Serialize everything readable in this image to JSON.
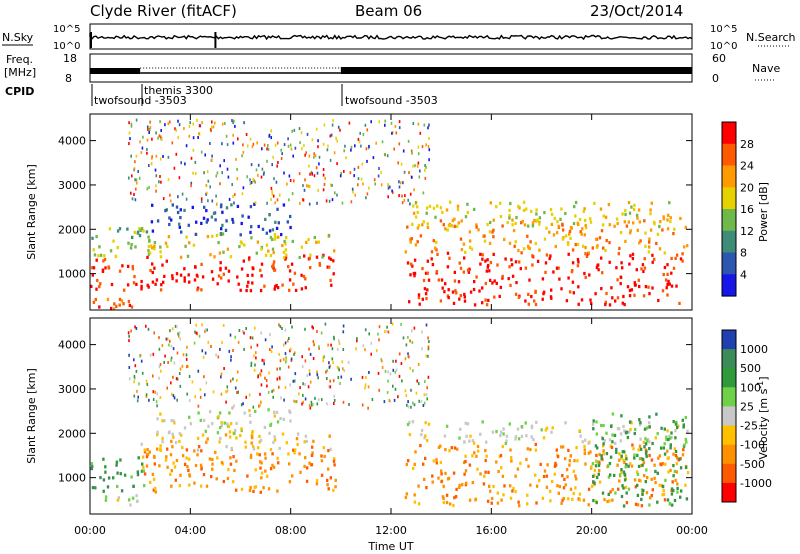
{
  "header": {
    "station": "Clyde River (fitACF)",
    "beam": "Beam 06",
    "date": "23/Oct/2014"
  },
  "nsky_panel": {
    "left_label": "N.Sky",
    "right_label": "N.Search",
    "left_ticks": [
      "10^5",
      "10^0"
    ],
    "right_ticks": [
      "10^5",
      "10^0"
    ]
  },
  "freq_panel": {
    "left_label_1": "Freq.",
    "left_label_2": "[MHz]",
    "right_label": "Nave",
    "left_ticks": [
      "18",
      "8"
    ],
    "right_ticks": [
      "60",
      "0"
    ]
  },
  "cpid": {
    "label": "CPID",
    "segments": [
      {
        "name": "twofsound -3503",
        "start_hour": 0,
        "end_hour": 2
      },
      {
        "name": "themis 3300",
        "start_hour": 2,
        "end_hour": 10
      },
      {
        "name": "twofsound -3503",
        "start_hour": 10,
        "end_hour": 24
      }
    ],
    "mid_label": "themis 3300",
    "first_label": "twofsound -3503",
    "last_label": "twofsound -3503"
  },
  "power_panel": {
    "ylabel": "Slant Range [km]",
    "cbar_label": "Power [dB]",
    "cbar_ticks": [
      "28",
      "24",
      "20",
      "16",
      "12",
      "8",
      "4"
    ],
    "cbar_colors": [
      "#ff0000",
      "#ff5a00",
      "#ff9a00",
      "#e6d200",
      "#6fb84a",
      "#3c8c78",
      "#2c56b0",
      "#1616e8"
    ]
  },
  "velocity_panel": {
    "ylabel": "Slant Range [km]",
    "cbar_label": "Velocity [m s",
    "cbar_label_sup": "-1",
    "cbar_label_end": "]",
    "cbar_ticks": [
      "1000",
      "500",
      "100",
      "25",
      "-25",
      "-100",
      "-500",
      "-1000"
    ],
    "cbar_colors": [
      "#2040b0",
      "#3c8c5a",
      "#2f9a3a",
      "#6fd04a",
      "#c8c8c8",
      "#ffc000",
      "#ff9000",
      "#ff5a00",
      "#ff0000"
    ]
  },
  "xaxis": {
    "label": "Time UT",
    "ticks": [
      "00:00",
      "04:00",
      "08:00",
      "12:00",
      "16:00",
      "20:00",
      "00:00"
    ]
  },
  "chart_data": [
    {
      "type": "line",
      "title": "",
      "x": [
        0,
        24
      ],
      "xlim": [
        0,
        24
      ],
      "series": [],
      "yscale": "log"
    },
    {
      "type": "heatmap",
      "title": "",
      "xlabel": "Time UT",
      "ylabel": "Slant Range [km]",
      "xlim": [
        0,
        24
      ],
      "ylim": [
        180,
        4600
      ],
      "yticks": [
        1000,
        2000,
        3000,
        4000
      ],
      "colorbar": "Power [dB]",
      "scatter_bands": [
        {
          "t0": 0.0,
          "t1": 2.1,
          "r0": 650,
          "r1": 1400,
          "level": 0
        },
        {
          "t0": 0.0,
          "t1": 2.3,
          "r0": 1400,
          "r1": 2150,
          "level": 4
        },
        {
          "t0": 0.0,
          "t1": 2.0,
          "r0": 200,
          "r1": 600,
          "level": 1
        },
        {
          "t0": 2.0,
          "t1": 9.8,
          "r0": 650,
          "r1": 1450,
          "level": 0
        },
        {
          "t0": 2.0,
          "t1": 9.8,
          "r0": 1400,
          "r1": 1950,
          "level": 3
        },
        {
          "t0": 2.4,
          "t1": 8.0,
          "r0": 1900,
          "r1": 2600,
          "level": 6
        },
        {
          "t0": 12.5,
          "t1": 23.8,
          "r0": 330,
          "r1": 1500,
          "level": 0
        },
        {
          "t0": 12.5,
          "t1": 23.8,
          "r0": 1500,
          "r1": 2250,
          "level": 2
        },
        {
          "t0": 12.8,
          "t1": 23.5,
          "r0": 2100,
          "r1": 2650,
          "level": 3
        }
      ]
    },
    {
      "type": "heatmap",
      "title": "",
      "xlabel": "Time UT",
      "ylabel": "Slant Range [km]",
      "xlim": [
        0,
        24
      ],
      "ylim": [
        180,
        4600
      ],
      "yticks": [
        1000,
        2000,
        3000,
        4000
      ],
      "colorbar": "Velocity [m s-1]",
      "scatter_bands": [
        {
          "t0": 0.0,
          "t1": 2.2,
          "r0": 700,
          "r1": 1500,
          "level": 2
        },
        {
          "t0": 0.5,
          "t1": 2.0,
          "r0": 300,
          "r1": 650,
          "level": 4
        },
        {
          "t0": 2.0,
          "t1": 9.8,
          "r0": 700,
          "r1": 1750,
          "level": 6
        },
        {
          "t0": 2.0,
          "t1": 9.8,
          "r0": 1650,
          "r1": 2050,
          "level": 5
        },
        {
          "t0": 2.5,
          "t1": 8.0,
          "r0": 2000,
          "r1": 2600,
          "level": 4
        },
        {
          "t0": 12.5,
          "t1": 23.8,
          "r0": 380,
          "r1": 1800,
          "level": 6
        },
        {
          "t0": 12.5,
          "t1": 23.8,
          "r0": 1800,
          "r1": 2300,
          "level": 4
        },
        {
          "t0": 20.0,
          "t1": 23.8,
          "r0": 380,
          "r1": 2500,
          "level": 2
        }
      ]
    }
  ]
}
